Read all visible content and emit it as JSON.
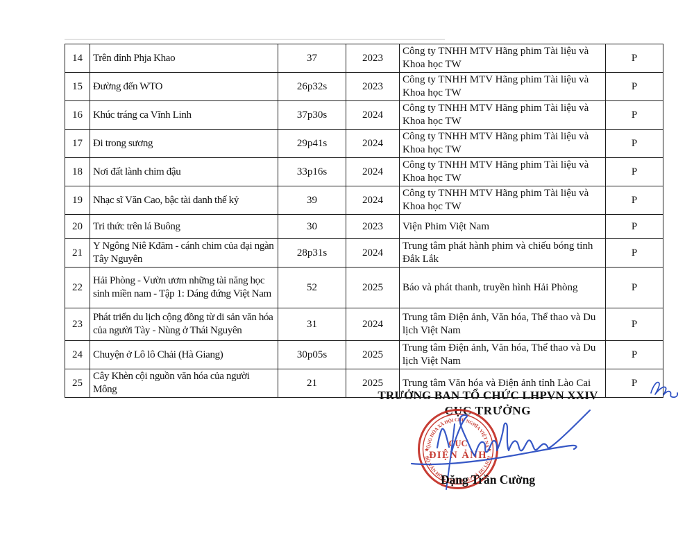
{
  "table": {
    "rows": [
      {
        "no": "14",
        "title": "Trên đỉnh Phja Khao",
        "duration": "37",
        "year": "2023",
        "producer": "Công ty TNHH MTV Hãng phim Tài liệu và Khoa học TW",
        "status": "P"
      },
      {
        "no": "15",
        "title": "Đường đến WTO",
        "duration": "26p32s",
        "year": "2023",
        "producer": "Công ty TNHH MTV Hãng phim Tài liệu và Khoa học TW",
        "status": "P"
      },
      {
        "no": "16",
        "title": "Khúc tráng ca Vĩnh Linh",
        "duration": "37p30s",
        "year": "2024",
        "producer": "Công ty TNHH MTV Hãng phim Tài liệu và Khoa học TW",
        "status": "P"
      },
      {
        "no": "17",
        "title": "Đi trong sương",
        "duration": "29p41s",
        "year": "2024",
        "producer": "Công ty TNHH MTV Hãng phim Tài liệu và Khoa học TW",
        "status": "P"
      },
      {
        "no": "18",
        "title": "Nơi đất lành chim đậu",
        "duration": "33p16s",
        "year": "2024",
        "producer": "Công ty TNHH MTV Hãng phim Tài liệu và Khoa học TW",
        "status": "P"
      },
      {
        "no": "19",
        "title": "Nhạc sĩ Văn Cao, bậc tài danh thế kỷ",
        "duration": "39",
        "year": "2024",
        "producer": "Công ty TNHH MTV Hãng phim Tài liệu và Khoa học TW",
        "status": "P"
      },
      {
        "no": "20",
        "title": "Tri thức trên lá Buông",
        "duration": "30",
        "year": "2023",
        "producer": "Viện Phim Việt Nam",
        "status": "P"
      },
      {
        "no": "21",
        "title": "Y Ngông Niê Kđăm - cánh chim của đại ngàn Tây Nguyên",
        "duration": "28p31s",
        "year": "2024",
        "producer": "Trung tâm phát hành phim và chiếu bóng tỉnh Đắk Lắk",
        "status": "P"
      },
      {
        "no": "22",
        "title": "Hải Phòng - Vườn ươm những tài năng học sinh miền nam - Tập 1: Dáng đứng Việt Nam",
        "duration": "52",
        "year": "2025",
        "producer": "Báo và phát thanh, truyền hình Hải Phòng",
        "status": "P"
      },
      {
        "no": "23",
        "title": "Phát triển du lịch cộng đồng từ di sản văn hóa của người Tày - Nùng ở Thái Nguyên",
        "duration": "31",
        "year": "2024",
        "producer": "Trung tâm Điện ảnh, Văn hóa, Thể thao và Du lịch Việt Nam",
        "status": "P"
      },
      {
        "no": "24",
        "title": "Chuyện ở Lô lô Chải (Hà Giang)",
        "duration": "30p05s",
        "year": "2025",
        "producer": "Trung tâm Điện ảnh, Văn hóa, Thể thao và Du lịch Việt Nam",
        "status": "P"
      },
      {
        "no": "25",
        "title": "Cây Khèn cội nguồn văn hóa của người Mông",
        "duration": "21",
        "year": "2025",
        "producer": "Trung tâm Văn hóa và Điện ảnh tỉnh Lào Cai",
        "status": "P"
      }
    ]
  },
  "signature_block": {
    "heading": "TRƯỞNG BAN TỔ CHỨC LHPVN XXIV",
    "role": "CỤC TRƯỞNG",
    "signer_name": "Đặng Trần Cường",
    "stamp": {
      "arc_top": "CỘNG HÒA XÃ HỘI CHỦ NGHĨA VIỆT NAM",
      "arc_bottom": "BỘ VĂN HÓA, THỂ THAO VÀ DU LỊCH",
      "center_line1": "CỤC",
      "center_line2": "ĐIỆN ẢNH",
      "star": "★",
      "color": "#c1271e"
    },
    "signature_color": "#2d50c3"
  }
}
